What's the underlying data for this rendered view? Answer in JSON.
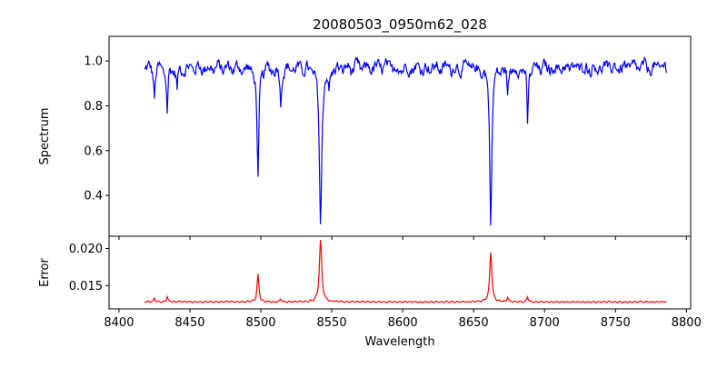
{
  "chart_data": [
    {
      "type": "line",
      "title": "20080503_0950m62_028",
      "xlabel": "",
      "ylabel": "Spectrum",
      "xlim": [
        8393,
        8803
      ],
      "ylim": [
        0.218,
        1.11
      ],
      "yticks": [
        "0.4",
        "0.6",
        "0.8",
        "1.0"
      ],
      "ytick_values": [
        0.4,
        0.6,
        0.8,
        1.0
      ],
      "series": [
        {
          "color": "#0000ff",
          "continuum": 0.97,
          "noise_amplitude": 0.045,
          "x_range": [
            8418,
            8786
          ],
          "absorption_lines": [
            {
              "center": 8425,
              "depth": 0.13,
              "width": 0.6
            },
            {
              "center": 8434,
              "depth": 0.2,
              "width": 0.6
            },
            {
              "center": 8441,
              "depth": 0.1,
              "width": 0.6
            },
            {
              "center": 8498.0,
              "depth": 0.52,
              "width": 0.75
            },
            {
              "center": 8514,
              "depth": 0.16,
              "width": 0.6
            },
            {
              "center": 8542.1,
              "depth": 0.7,
              "width": 1.0
            },
            {
              "center": 8548,
              "depth": 0.1,
              "width": 0.6
            },
            {
              "center": 8662.1,
              "depth": 0.67,
              "width": 0.9
            },
            {
              "center": 8674,
              "depth": 0.12,
              "width": 0.6
            },
            {
              "center": 8688,
              "depth": 0.26,
              "width": 0.6
            }
          ]
        }
      ]
    },
    {
      "type": "line",
      "xlabel": "Wavelength",
      "ylabel": "Error",
      "xlim": [
        8393,
        8803
      ],
      "ylim": [
        0.01185,
        0.02166
      ],
      "xticks": [
        "8400",
        "8450",
        "8500",
        "8550",
        "8600",
        "8650",
        "8700",
        "8750",
        "8800"
      ],
      "xtick_values": [
        8400,
        8450,
        8500,
        8550,
        8600,
        8650,
        8700,
        8750,
        8800
      ],
      "yticks": [
        "0.015",
        "0.020"
      ],
      "ytick_values": [
        0.015,
        0.02
      ],
      "series": [
        {
          "color": "#ff0000",
          "baseline": 0.0128,
          "x_range": [
            8418,
            8786
          ],
          "emission_features": [
            {
              "center": 8425,
              "height": 0.0005,
              "width": 0.6
            },
            {
              "center": 8434,
              "height": 0.0008,
              "width": 0.6
            },
            {
              "center": 8498.0,
              "height": 0.0037,
              "width": 0.75
            },
            {
              "center": 8514,
              "height": 0.0004,
              "width": 0.6
            },
            {
              "center": 8542.1,
              "height": 0.0084,
              "width": 1.0
            },
            {
              "center": 8662.1,
              "height": 0.0068,
              "width": 0.9
            },
            {
              "center": 8674,
              "height": 0.0006,
              "width": 0.6
            },
            {
              "center": 8688,
              "height": 0.0007,
              "width": 0.6
            }
          ]
        }
      ]
    }
  ]
}
